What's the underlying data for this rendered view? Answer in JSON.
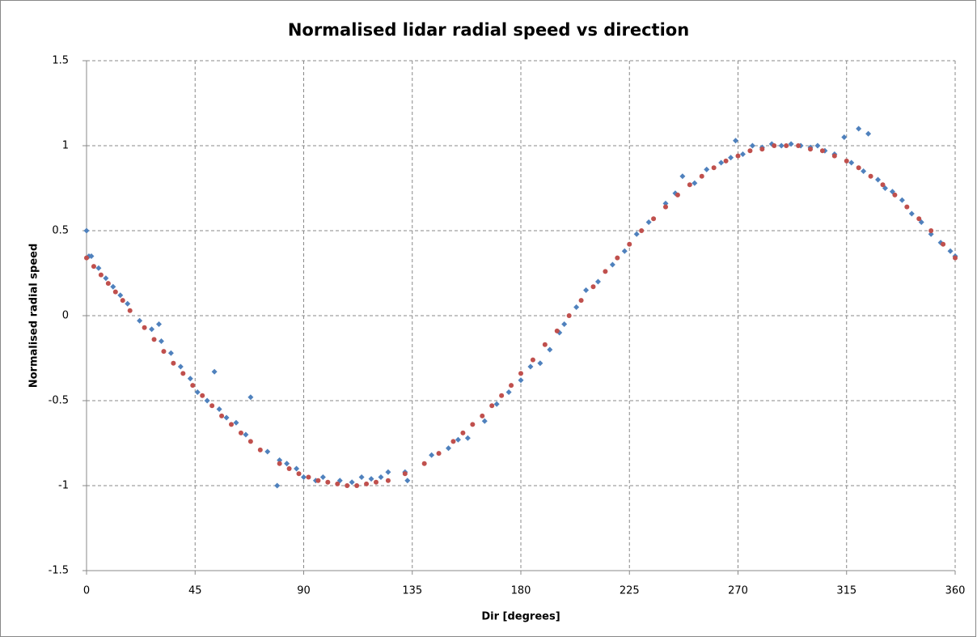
{
  "chart_data": {
    "type": "scatter",
    "title": "Normalised lidar radial speed vs direction",
    "x_label": "Dir  [degrees]",
    "y_label": "Normalised radial speed",
    "xlim": [
      0,
      360
    ],
    "xticks": [
      0,
      45,
      90,
      135,
      180,
      225,
      270,
      315,
      360
    ],
    "ylim": [
      -1.5,
      1.5
    ],
    "yticks": [
      -1.5,
      -1,
      -0.5,
      0,
      0.5,
      1,
      1.5
    ],
    "grid": true,
    "series": [
      {
        "color": "#4f81bd",
        "marker": "diamond",
        "x": [
          0,
          1,
          2,
          5,
          8,
          11,
          14,
          17,
          22,
          27,
          30,
          31,
          35,
          39,
          43,
          46,
          50,
          53,
          55,
          58,
          62,
          66,
          68,
          75,
          79,
          80,
          83,
          87,
          90,
          95,
          98,
          105,
          110,
          114,
          118,
          122,
          125,
          132,
          133,
          143,
          150,
          154,
          158,
          165,
          170,
          175,
          180,
          184,
          188,
          192,
          196,
          198,
          203,
          207,
          212,
          218,
          223,
          228,
          233,
          240,
          244,
          247,
          252,
          257,
          263,
          267,
          269,
          272,
          276,
          280,
          284,
          288,
          292,
          296,
          300,
          303,
          306,
          310,
          314,
          317,
          320,
          322,
          324,
          328,
          331,
          334,
          338,
          342,
          346,
          350,
          354,
          358,
          360
        ],
        "values": [
          0.5,
          0.35,
          0.35,
          0.28,
          0.22,
          0.17,
          0.12,
          0.07,
          -0.03,
          -0.08,
          -0.05,
          -0.15,
          -0.22,
          -0.3,
          -0.37,
          -0.45,
          -0.5,
          -0.33,
          -0.55,
          -0.6,
          -0.63,
          -0.7,
          -0.48,
          -0.8,
          -1.0,
          -0.85,
          -0.87,
          -0.9,
          -0.95,
          -0.97,
          -0.95,
          -0.97,
          -0.98,
          -0.95,
          -0.96,
          -0.95,
          -0.92,
          -0.92,
          -0.97,
          -0.82,
          -0.78,
          -0.73,
          -0.72,
          -0.62,
          -0.52,
          -0.45,
          -0.38,
          -0.3,
          -0.28,
          -0.2,
          -0.1,
          -0.05,
          0.05,
          0.15,
          0.2,
          0.3,
          0.38,
          0.48,
          0.55,
          0.66,
          0.72,
          0.82,
          0.78,
          0.86,
          0.9,
          0.93,
          1.03,
          0.95,
          1.0,
          0.99,
          1.01,
          1.0,
          1.01,
          1.0,
          0.99,
          1.0,
          0.97,
          0.95,
          1.05,
          0.9,
          1.1,
          0.85,
          1.07,
          0.8,
          0.75,
          0.73,
          0.68,
          0.6,
          0.55,
          0.48,
          0.43,
          0.38,
          0.35
        ]
      },
      {
        "color": "#c0504d",
        "marker": "circle",
        "x": [
          0,
          3,
          6,
          9,
          12,
          15,
          18,
          24,
          28,
          32,
          36,
          40,
          44,
          48,
          52,
          56,
          60,
          64,
          68,
          72,
          80,
          84,
          88,
          92,
          96,
          100,
          104,
          108,
          112,
          116,
          120,
          125,
          132,
          140,
          146,
          152,
          156,
          160,
          164,
          168,
          172,
          176,
          180,
          185,
          190,
          195,
          200,
          205,
          210,
          215,
          220,
          225,
          230,
          235,
          240,
          245,
          250,
          255,
          260,
          265,
          270,
          275,
          280,
          285,
          290,
          295,
          300,
          305,
          310,
          315,
          320,
          325,
          330,
          335,
          340,
          345,
          350,
          355,
          360
        ],
        "values": [
          0.34,
          0.29,
          0.24,
          0.19,
          0.14,
          0.09,
          0.03,
          -0.07,
          -0.14,
          -0.21,
          -0.28,
          -0.34,
          -0.41,
          -0.47,
          -0.53,
          -0.59,
          -0.64,
          -0.69,
          -0.74,
          -0.79,
          -0.87,
          -0.9,
          -0.93,
          -0.95,
          -0.97,
          -0.98,
          -0.99,
          -1.0,
          -1.0,
          -0.99,
          -0.98,
          -0.97,
          -0.93,
          -0.87,
          -0.81,
          -0.74,
          -0.69,
          -0.64,
          -0.59,
          -0.53,
          -0.47,
          -0.41,
          -0.34,
          -0.26,
          -0.17,
          -0.09,
          0.0,
          0.09,
          0.17,
          0.26,
          0.34,
          0.42,
          0.5,
          0.57,
          0.64,
          0.71,
          0.77,
          0.82,
          0.87,
          0.91,
          0.94,
          0.97,
          0.98,
          1.0,
          1.0,
          1.0,
          0.98,
          0.97,
          0.94,
          0.91,
          0.87,
          0.82,
          0.77,
          0.71,
          0.64,
          0.57,
          0.5,
          0.42,
          0.34
        ]
      }
    ]
  }
}
